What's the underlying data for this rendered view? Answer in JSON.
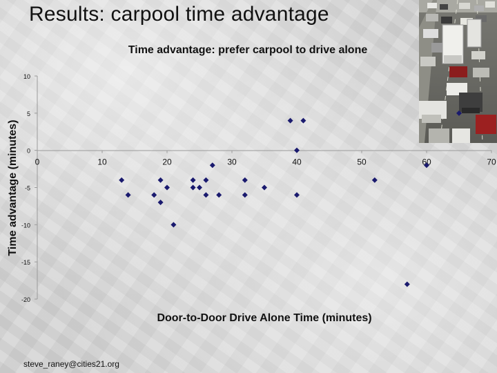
{
  "slide": {
    "title": "Results: carpool time advantage",
    "footer": "steve_raney@cities21.org"
  },
  "chart_data": {
    "type": "scatter",
    "title": "Time advantage: prefer carpool to drive alone",
    "xlabel": "Door-to-Door Drive Alone Time (minutes)",
    "ylabel": "Time advantage (minutes)",
    "xlim": [
      0,
      70
    ],
    "ylim": [
      -20,
      10
    ],
    "x_ticks": [
      0,
      10,
      20,
      30,
      40,
      50,
      60,
      70
    ],
    "y_ticks": [
      10,
      5,
      0,
      -5,
      -10,
      -15,
      -20
    ],
    "grid": false,
    "marker_color": "#1a1a6e",
    "series": [
      {
        "x": [
          13,
          14,
          18,
          19,
          19,
          20,
          21,
          24,
          24,
          25,
          26,
          26,
          27,
          28,
          32,
          32,
          35,
          39,
          40,
          40,
          41,
          52,
          57,
          60,
          65
        ],
        "y": [
          -4,
          -6,
          -6,
          -4,
          -7,
          -5,
          -10,
          -4,
          -5,
          -5,
          -6,
          -4,
          -2,
          -6,
          -4,
          -6,
          -5,
          4,
          0,
          -6,
          4,
          -4,
          -18,
          -2,
          5
        ]
      }
    ]
  },
  "colors": {
    "marker": "#1a1a6e",
    "axis": "#9a9a9a",
    "text": "#111111"
  }
}
